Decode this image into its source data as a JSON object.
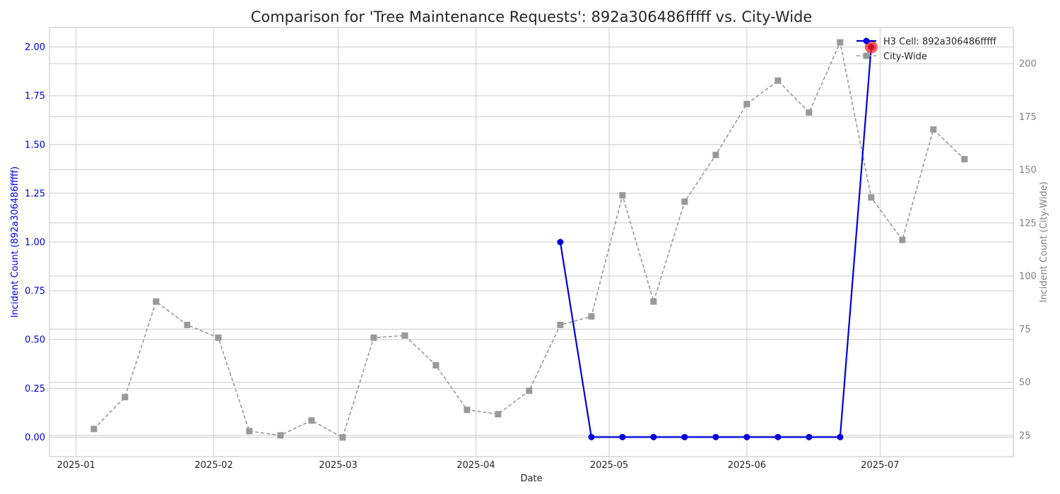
{
  "chart_data": {
    "type": "line",
    "title": "Comparison for 'Tree Maintenance Requests': 892a306486fffff vs. City-Wide",
    "xlabel": "Date",
    "ylabel_left": "Incident Count (892a306486fffff)",
    "ylabel_right": "Incident Count (City-Wide)",
    "x_ticks": [
      "2025-01",
      "2025-02",
      "2025-03",
      "2025-04",
      "2025-05",
      "2025-06",
      "2025-07"
    ],
    "xlim": [
      "2024-12-26",
      "2025-07-31"
    ],
    "ylim_left": [
      -0.1,
      2.1
    ],
    "ylim_right": [
      15,
      217
    ],
    "y_ticks_left": [
      "0.00",
      "0.25",
      "0.50",
      "0.75",
      "1.00",
      "1.25",
      "1.50",
      "1.75",
      "2.00"
    ],
    "y_ticks_right": [
      "25",
      "50",
      "75",
      "100",
      "125",
      "150",
      "175",
      "200"
    ],
    "grid": true,
    "legend_position": "top-right",
    "series": [
      {
        "name": "H3 Cell: 892a306486fffff",
        "axis": "left",
        "color": "#0000dd",
        "style": "solid",
        "marker": "circle",
        "points": [
          {
            "x": "2025-04-20",
            "y": 1
          },
          {
            "x": "2025-04-27",
            "y": 0
          },
          {
            "x": "2025-05-04",
            "y": 0
          },
          {
            "x": "2025-05-11",
            "y": 0
          },
          {
            "x": "2025-05-18",
            "y": 0
          },
          {
            "x": "2025-05-25",
            "y": 0
          },
          {
            "x": "2025-06-01",
            "y": 0
          },
          {
            "x": "2025-06-08",
            "y": 0
          },
          {
            "x": "2025-06-15",
            "y": 0
          },
          {
            "x": "2025-06-22",
            "y": 0
          },
          {
            "x": "2025-06-29",
            "y": 2
          }
        ]
      },
      {
        "name": "City-Wide",
        "axis": "right",
        "color": "#999999",
        "style": "dashed",
        "marker": "square",
        "points": [
          {
            "x": "2025-01-05",
            "y": 28
          },
          {
            "x": "2025-01-12",
            "y": 43
          },
          {
            "x": "2025-01-19",
            "y": 88
          },
          {
            "x": "2025-01-26",
            "y": 77
          },
          {
            "x": "2025-02-02",
            "y": 71
          },
          {
            "x": "2025-02-09",
            "y": 27
          },
          {
            "x": "2025-02-16",
            "y": 25
          },
          {
            "x": "2025-02-23",
            "y": 32
          },
          {
            "x": "2025-03-02",
            "y": 24
          },
          {
            "x": "2025-03-09",
            "y": 71
          },
          {
            "x": "2025-03-16",
            "y": 72
          },
          {
            "x": "2025-03-23",
            "y": 58
          },
          {
            "x": "2025-03-30",
            "y": 37
          },
          {
            "x": "2025-04-06",
            "y": 35
          },
          {
            "x": "2025-04-13",
            "y": 46
          },
          {
            "x": "2025-04-20",
            "y": 77
          },
          {
            "x": "2025-04-27",
            "y": 81
          },
          {
            "x": "2025-05-04",
            "y": 138
          },
          {
            "x": "2025-05-11",
            "y": 88
          },
          {
            "x": "2025-05-18",
            "y": 135
          },
          {
            "x": "2025-05-25",
            "y": 157
          },
          {
            "x": "2025-06-01",
            "y": 181
          },
          {
            "x": "2025-06-08",
            "y": 192
          },
          {
            "x": "2025-06-15",
            "y": 177
          },
          {
            "x": "2025-06-22",
            "y": 210
          },
          {
            "x": "2025-06-29",
            "y": 137
          },
          {
            "x": "2025-07-06",
            "y": 117
          },
          {
            "x": "2025-07-13",
            "y": 169
          },
          {
            "x": "2025-07-20",
            "y": 155
          }
        ]
      }
    ],
    "highlight": {
      "series": "H3 Cell: 892a306486fffff",
      "x": "2025-06-29",
      "y": 2,
      "color": "#ff2020"
    },
    "colors": {
      "left_axis": "#0000dd",
      "right_axis": "#808080",
      "grid": "#cccccc",
      "frame": "#cccccc"
    }
  }
}
